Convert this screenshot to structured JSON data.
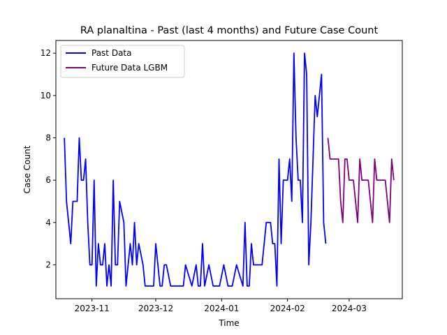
{
  "chart_data": {
    "type": "line",
    "title": "RA planaltina - Past (last 4 months) and Future Case Count",
    "xlabel": "Time",
    "ylabel": "Case Count",
    "x_range": [
      "2023-10-15",
      "2024-03-26"
    ],
    "ylim": [
      0.4,
      12.6
    ],
    "x_ticks": [
      {
        "date": "2023-11-01",
        "label": "2023-11"
      },
      {
        "date": "2023-12-01",
        "label": "2023-12"
      },
      {
        "date": "2024-01-01",
        "label": "2024-01"
      },
      {
        "date": "2024-02-01",
        "label": "2024-02"
      },
      {
        "date": "2024-03-01",
        "label": "2024-03"
      }
    ],
    "y_ticks": [
      2,
      4,
      6,
      8,
      10,
      12
    ],
    "grid": false,
    "legend_position": "top-left",
    "series": [
      {
        "name": "Past Data",
        "color": "#0000ff",
        "points": [
          [
            "2023-10-19",
            8
          ],
          [
            "2023-10-20",
            5
          ],
          [
            "2023-10-22",
            3
          ],
          [
            "2023-10-23",
            5
          ],
          [
            "2023-10-25",
            5
          ],
          [
            "2023-10-26",
            8
          ],
          [
            "2023-10-27",
            6
          ],
          [
            "2023-10-28",
            6
          ],
          [
            "2023-10-29",
            7
          ],
          [
            "2023-10-30",
            4
          ],
          [
            "2023-10-31",
            2
          ],
          [
            "2023-11-01",
            2
          ],
          [
            "2023-11-02",
            6
          ],
          [
            "2023-11-03",
            1
          ],
          [
            "2023-11-04",
            3
          ],
          [
            "2023-11-05",
            2
          ],
          [
            "2023-11-06",
            2
          ],
          [
            "2023-11-07",
            3
          ],
          [
            "2023-11-08",
            1
          ],
          [
            "2023-11-09",
            2
          ],
          [
            "2023-11-10",
            1
          ],
          [
            "2023-11-11",
            6
          ],
          [
            "2023-11-12",
            2
          ],
          [
            "2023-11-13",
            2
          ],
          [
            "2023-11-14",
            5
          ],
          [
            "2023-11-15",
            4.5
          ],
          [
            "2023-11-16",
            4
          ],
          [
            "2023-11-17",
            1
          ],
          [
            "2023-11-19",
            3
          ],
          [
            "2023-11-20",
            2
          ],
          [
            "2023-11-21",
            4
          ],
          [
            "2023-11-22",
            2
          ],
          [
            "2023-11-23",
            3
          ],
          [
            "2023-11-25",
            2
          ],
          [
            "2023-11-26",
            1
          ],
          [
            "2023-11-27",
            1
          ],
          [
            "2023-11-30",
            1
          ],
          [
            "2023-12-01",
            3
          ],
          [
            "2023-12-02",
            2
          ],
          [
            "2023-12-03",
            1
          ],
          [
            "2023-12-04",
            1
          ],
          [
            "2023-12-05",
            2
          ],
          [
            "2023-12-06",
            2
          ],
          [
            "2023-12-08",
            1
          ],
          [
            "2023-12-14",
            1
          ],
          [
            "2023-12-15",
            2
          ],
          [
            "2023-12-18",
            1
          ],
          [
            "2023-12-20",
            2
          ],
          [
            "2023-12-21",
            1
          ],
          [
            "2023-12-22",
            1
          ],
          [
            "2023-12-23",
            3
          ],
          [
            "2023-12-24",
            1
          ],
          [
            "2023-12-26",
            2
          ],
          [
            "2023-12-28",
            1
          ],
          [
            "2023-12-31",
            1
          ],
          [
            "2024-01-01",
            1.5
          ],
          [
            "2024-01-02",
            2
          ],
          [
            "2024-01-04",
            1
          ],
          [
            "2024-01-06",
            1
          ],
          [
            "2024-01-07",
            1.5
          ],
          [
            "2024-01-08",
            2
          ],
          [
            "2024-01-11",
            1
          ],
          [
            "2024-01-12",
            4
          ],
          [
            "2024-01-13",
            1
          ],
          [
            "2024-01-14",
            1
          ],
          [
            "2024-01-15",
            3
          ],
          [
            "2024-01-16",
            2
          ],
          [
            "2024-01-20",
            2
          ],
          [
            "2024-01-22",
            4
          ],
          [
            "2024-01-24",
            4
          ],
          [
            "2024-01-25",
            3
          ],
          [
            "2024-01-26",
            3
          ],
          [
            "2024-01-27",
            1
          ],
          [
            "2024-01-28",
            7
          ],
          [
            "2024-01-29",
            3
          ],
          [
            "2024-01-30",
            6
          ],
          [
            "2024-01-31",
            6
          ],
          [
            "2024-02-01",
            6
          ],
          [
            "2024-02-02",
            7
          ],
          [
            "2024-02-03",
            5
          ],
          [
            "2024-02-04",
            12
          ],
          [
            "2024-02-05",
            8
          ],
          [
            "2024-02-06",
            6
          ],
          [
            "2024-02-07",
            6
          ],
          [
            "2024-02-08",
            4
          ],
          [
            "2024-02-09",
            12
          ],
          [
            "2024-02-10",
            11
          ],
          [
            "2024-02-11",
            2
          ],
          [
            "2024-02-12",
            4
          ],
          [
            "2024-02-13",
            7
          ],
          [
            "2024-02-14",
            10
          ],
          [
            "2024-02-15",
            9
          ],
          [
            "2024-02-16",
            10
          ],
          [
            "2024-02-17",
            11
          ],
          [
            "2024-02-18",
            4
          ],
          [
            "2024-02-19",
            3
          ]
        ]
      },
      {
        "name": "Future Data LGBM",
        "color": "#800080",
        "points": [
          [
            "2024-02-20",
            8
          ],
          [
            "2024-02-21",
            7
          ],
          [
            "2024-02-22",
            7
          ],
          [
            "2024-02-23",
            7
          ],
          [
            "2024-02-24",
            7
          ],
          [
            "2024-02-25",
            7
          ],
          [
            "2024-02-26",
            5
          ],
          [
            "2024-02-27",
            4
          ],
          [
            "2024-02-28",
            7
          ],
          [
            "2024-02-29",
            7
          ],
          [
            "2024-03-01",
            6
          ],
          [
            "2024-03-02",
            6
          ],
          [
            "2024-03-03",
            6
          ],
          [
            "2024-03-04",
            5
          ],
          [
            "2024-03-05",
            4
          ],
          [
            "2024-03-06",
            7
          ],
          [
            "2024-03-07",
            6
          ],
          [
            "2024-03-08",
            6
          ],
          [
            "2024-03-09",
            6
          ],
          [
            "2024-03-10",
            6
          ],
          [
            "2024-03-11",
            5
          ],
          [
            "2024-03-12",
            4
          ],
          [
            "2024-03-13",
            7
          ],
          [
            "2024-03-14",
            6
          ],
          [
            "2024-03-15",
            6
          ],
          [
            "2024-03-16",
            6
          ],
          [
            "2024-03-17",
            6
          ],
          [
            "2024-03-18",
            6
          ],
          [
            "2024-03-19",
            5
          ],
          [
            "2024-03-20",
            4
          ],
          [
            "2024-03-21",
            7
          ],
          [
            "2024-03-22",
            6
          ]
        ]
      }
    ]
  }
}
